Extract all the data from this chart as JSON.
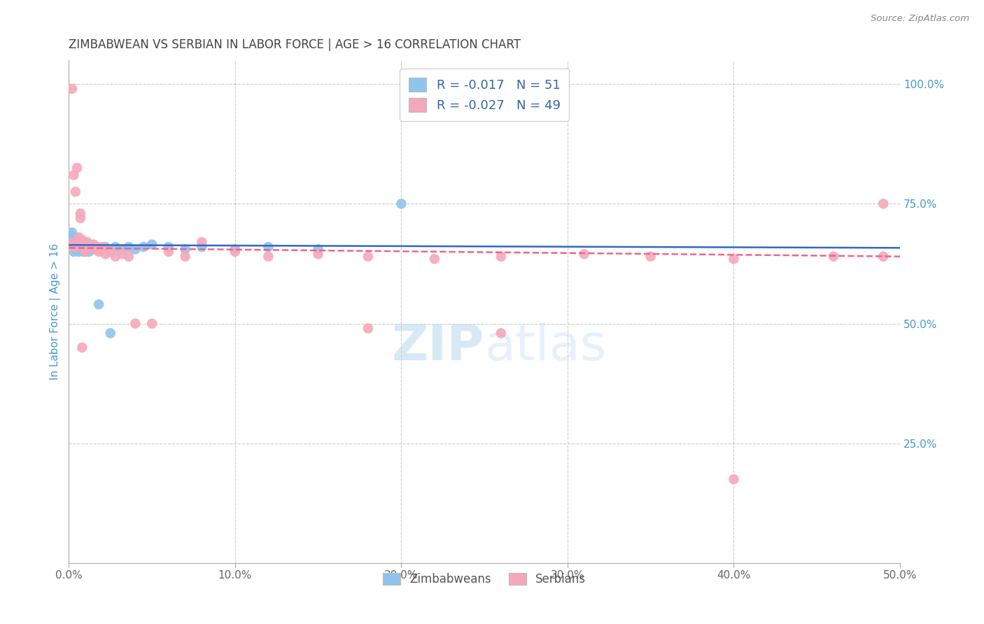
{
  "title": "ZIMBABWEAN VS SERBIAN IN LABOR FORCE | AGE > 16 CORRELATION CHART",
  "source": "Source: ZipAtlas.com",
  "ylabel": "In Labor Force | Age > 16",
  "xlim": [
    0.0,
    0.5
  ],
  "ylim": [
    0.0,
    1.05
  ],
  "xtick_labels": [
    "0.0%",
    "10.0%",
    "20.0%",
    "30.0%",
    "40.0%",
    "50.0%"
  ],
  "xtick_values": [
    0.0,
    0.1,
    0.2,
    0.3,
    0.4,
    0.5
  ],
  "ytick_labels_right": [
    "25.0%",
    "50.0%",
    "75.0%",
    "100.0%"
  ],
  "ytick_values_right": [
    0.25,
    0.5,
    0.75,
    1.0
  ],
  "watermark_zip": "ZIP",
  "watermark_atlas": "atlas",
  "color_zimbabwean": "#8EC4EE",
  "color_serbian": "#F5A8BB",
  "trendline_color_zimbabwean": "#3366CC",
  "trendline_color_serbian": "#EE6688",
  "background_color": "#FFFFFF",
  "grid_color": "#CCCCCC",
  "title_color": "#444444",
  "axis_label_color": "#4499CC",
  "right_tick_color": "#4499CC",
  "legend_r1_label": "R = ",
  "legend_r1_val": "-0.017",
  "legend_n1_label": "N = ",
  "legend_n1_val": "51",
  "legend_r2_label": "R = ",
  "legend_r2_val": "-0.027",
  "legend_n2_label": "N = ",
  "legend_n2_val": "49",
  "zimbabwean_x": [
    0.001,
    0.001,
    0.002,
    0.002,
    0.002,
    0.003,
    0.003,
    0.003,
    0.003,
    0.003,
    0.004,
    0.004,
    0.004,
    0.004,
    0.005,
    0.005,
    0.005,
    0.005,
    0.006,
    0.006,
    0.006,
    0.007,
    0.007,
    0.008,
    0.008,
    0.009,
    0.01,
    0.01,
    0.011,
    0.012,
    0.013,
    0.014,
    0.015,
    0.016,
    0.018,
    0.02,
    0.022,
    0.025,
    0.028,
    0.032,
    0.036,
    0.04,
    0.045,
    0.05,
    0.06,
    0.07,
    0.08,
    0.1,
    0.12,
    0.15,
    0.2
  ],
  "zimbabwean_y": [
    0.685,
    0.67,
    0.68,
    0.665,
    0.69,
    0.67,
    0.66,
    0.65,
    0.665,
    0.68,
    0.66,
    0.655,
    0.67,
    0.665,
    0.66,
    0.655,
    0.665,
    0.66,
    0.65,
    0.665,
    0.66,
    0.655,
    0.665,
    0.66,
    0.655,
    0.65,
    0.66,
    0.655,
    0.66,
    0.65,
    0.665,
    0.66,
    0.655,
    0.66,
    0.54,
    0.655,
    0.66,
    0.48,
    0.66,
    0.655,
    0.66,
    0.655,
    0.66,
    0.665,
    0.66,
    0.655,
    0.66,
    0.655,
    0.66,
    0.655,
    0.75
  ],
  "serbian_x": [
    0.002,
    0.003,
    0.004,
    0.005,
    0.006,
    0.007,
    0.007,
    0.008,
    0.009,
    0.01,
    0.011,
    0.012,
    0.013,
    0.015,
    0.016,
    0.017,
    0.018,
    0.019,
    0.02,
    0.022,
    0.025,
    0.028,
    0.032,
    0.036,
    0.04,
    0.05,
    0.06,
    0.07,
    0.08,
    0.1,
    0.12,
    0.15,
    0.18,
    0.22,
    0.26,
    0.31,
    0.35,
    0.4,
    0.46,
    0.49,
    0.002,
    0.003,
    0.005,
    0.008,
    0.01,
    0.18,
    0.26,
    0.4,
    0.49
  ],
  "serbian_y": [
    0.99,
    0.81,
    0.775,
    0.825,
    0.68,
    0.73,
    0.72,
    0.675,
    0.67,
    0.66,
    0.67,
    0.665,
    0.66,
    0.665,
    0.655,
    0.66,
    0.65,
    0.655,
    0.66,
    0.645,
    0.65,
    0.64,
    0.645,
    0.64,
    0.5,
    0.5,
    0.65,
    0.64,
    0.67,
    0.65,
    0.64,
    0.645,
    0.64,
    0.635,
    0.64,
    0.645,
    0.64,
    0.635,
    0.64,
    0.75,
    0.66,
    0.67,
    0.66,
    0.45,
    0.65,
    0.49,
    0.48,
    0.175,
    0.64
  ]
}
